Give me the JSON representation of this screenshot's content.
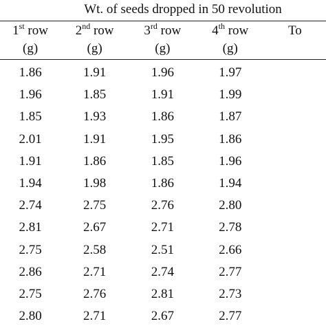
{
  "caption": "Wt. of seeds dropped in 50 revolution",
  "columns": [
    {
      "ordinal": "1",
      "suffix": "st",
      "label": "row",
      "unit": "(g)"
    },
    {
      "ordinal": "2",
      "suffix": "nd",
      "label": "row",
      "unit": "(g)"
    },
    {
      "ordinal": "3",
      "suffix": "rd",
      "label": "row",
      "unit": "(g)"
    },
    {
      "ordinal": "4",
      "suffix": "th",
      "label": "row",
      "unit": "(g)"
    },
    {
      "ordinal": "To",
      "suffix": "",
      "label": "",
      "unit": ""
    }
  ],
  "rows": [
    [
      "1.86",
      "1.91",
      "1.96",
      "1.97",
      ""
    ],
    [
      "1.96",
      "1.85",
      "1.91",
      "1.99",
      ""
    ],
    [
      "1.85",
      "1.93",
      "1.86",
      "1.87",
      ""
    ],
    [
      "2.01",
      "1.91",
      "1.95",
      "1.86",
      ""
    ],
    [
      "1.91",
      "1.86",
      "1.85",
      "1.96",
      ""
    ],
    [
      "1.94",
      "1.98",
      "1.86",
      "1.94",
      ""
    ],
    [
      "2.74",
      "2.75",
      "2.76",
      "2.80",
      ""
    ],
    [
      "2.81",
      "2.67",
      "2.71",
      "2.78",
      ""
    ],
    [
      "2.75",
      "2.58",
      "2.51",
      "2.66",
      ""
    ],
    [
      "2.86",
      "2.71",
      "2.74",
      "2.77",
      ""
    ],
    [
      "2.75",
      "2.76",
      "2.81",
      "2.73",
      ""
    ],
    [
      "2.80",
      "2.71",
      "2.67",
      "2.77",
      ""
    ]
  ]
}
